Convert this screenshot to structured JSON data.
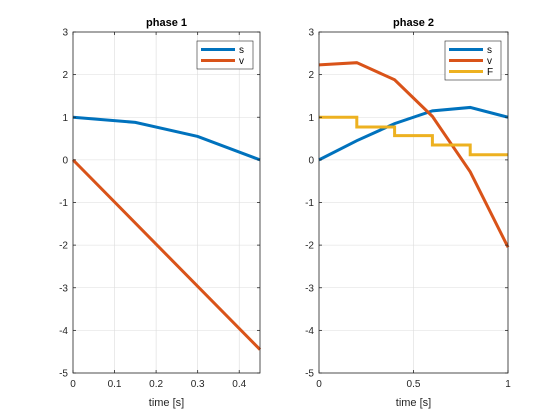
{
  "chart_data": [
    {
      "type": "line",
      "title": "phase 1",
      "xlabel": "time [s]",
      "ylabel": "",
      "xlim": [
        0,
        0.45
      ],
      "ylim": [
        -5,
        3
      ],
      "xticks": [
        0,
        0.1,
        0.2,
        0.3,
        0.4
      ],
      "xtick_labels": [
        "0",
        "0.1",
        "0.2",
        "0.3",
        "0.4"
      ],
      "yticks": [
        -5,
        -4,
        -3,
        -2,
        -1,
        0,
        1,
        2,
        3
      ],
      "ytick_labels": [
        "-5",
        "-4",
        "-3",
        "-2",
        "-1",
        "0",
        "1",
        "2",
        "3"
      ],
      "grid": true,
      "legend_position": "top-right",
      "series": [
        {
          "name": "s",
          "color": "#0072BD",
          "style": "line",
          "x": [
            0,
            0.15,
            0.3,
            0.45
          ],
          "y": [
            1,
            0.88,
            0.55,
            0
          ]
        },
        {
          "name": "v",
          "color": "#D95319",
          "style": "line",
          "x": [
            0,
            0.45
          ],
          "y": [
            0,
            -4.45
          ]
        }
      ]
    },
    {
      "type": "line",
      "title": "phase 2",
      "xlabel": "time [s]",
      "ylabel": "",
      "xlim": [
        0,
        1
      ],
      "ylim": [
        -5,
        3
      ],
      "xticks": [
        0,
        0.5,
        1
      ],
      "xtick_labels": [
        "0",
        "0.5",
        "1"
      ],
      "yticks": [
        -5,
        -4,
        -3,
        -2,
        -1,
        0,
        1,
        2,
        3
      ],
      "ytick_labels": [
        "-5",
        "-4",
        "-3",
        "-2",
        "-1",
        "0",
        "1",
        "2",
        "3"
      ],
      "grid": true,
      "legend_position": "top-right",
      "series": [
        {
          "name": "s",
          "color": "#0072BD",
          "style": "line",
          "x": [
            0,
            0.2,
            0.4,
            0.6,
            0.8,
            1.0
          ],
          "y": [
            0,
            0.45,
            0.85,
            1.15,
            1.23,
            1.0
          ]
        },
        {
          "name": "v",
          "color": "#D95319",
          "style": "line",
          "x": [
            0,
            0.2,
            0.4,
            0.6,
            0.8,
            1.0
          ],
          "y": [
            2.23,
            2.28,
            1.88,
            1.02,
            -0.28,
            -2.05
          ]
        },
        {
          "name": "F",
          "color": "#EDB120",
          "style": "stairs",
          "x": [
            0,
            0.2,
            0.4,
            0.6,
            0.8,
            1.0
          ],
          "y": [
            1.0,
            0.77,
            0.57,
            0.35,
            0.12,
            0.12
          ]
        }
      ]
    }
  ]
}
